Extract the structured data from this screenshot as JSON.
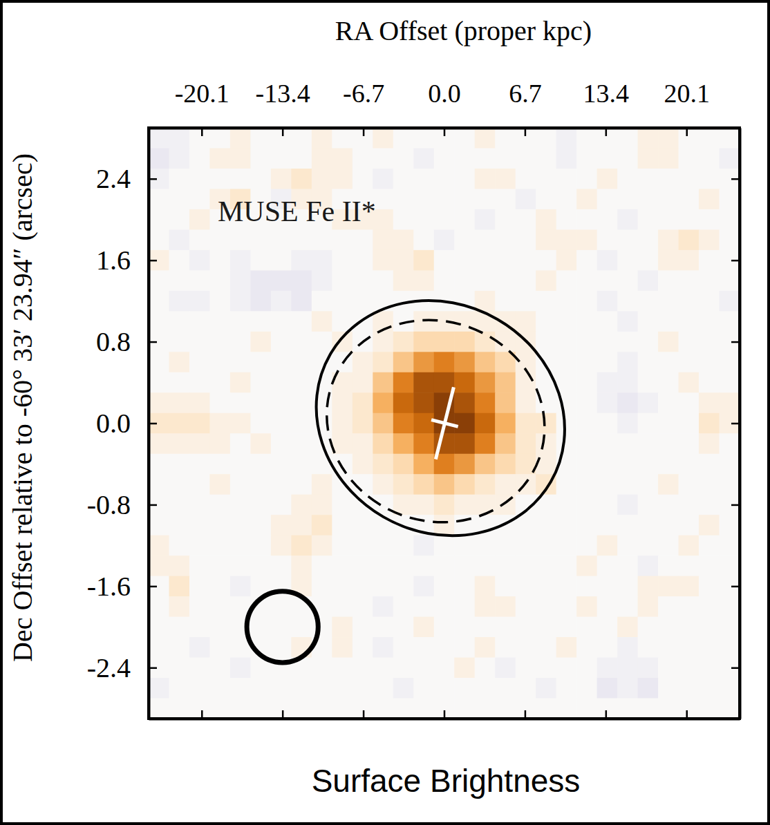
{
  "chart_data": {
    "type": "heatmap",
    "title": "MUSE Fe II*",
    "xlabel": "RA Offset (proper kpc)",
    "ylabel": "Dec Offset relative to -60° 33′ 23.94″ (arcsec)",
    "colorbar_label": "Surface Brightness",
    "xlim": [
      -24.5,
      24.5
    ],
    "ylim": [
      -2.9,
      2.9
    ],
    "xticks": [
      -20.1,
      -13.4,
      -6.7,
      {
        "value": 0,
        "label": "0.0"
      },
      6.7,
      13.4,
      20.1
    ],
    "yticks": [
      -2.4,
      -1.6,
      -0.8,
      {
        "value": 0,
        "label": "0.0"
      },
      0.8,
      1.6,
      2.4
    ],
    "tick_labels": true,
    "color_range": [
      -10,
      10
    ],
    "z": [
      [
        -1,
        -1,
        0,
        0,
        1,
        0,
        0,
        0,
        1,
        0,
        0,
        1,
        0,
        0,
        0,
        0,
        1,
        0,
        0,
        0,
        -1,
        0,
        0,
        0,
        1,
        1,
        0,
        0,
        0
      ],
      [
        -2,
        -1,
        0,
        1,
        1,
        0,
        0,
        0,
        1,
        1,
        0,
        0,
        0,
        -1,
        0,
        0,
        0,
        0,
        0,
        0,
        -1,
        0,
        0,
        0,
        1,
        1,
        0,
        0,
        -1
      ],
      [
        -1,
        0,
        0,
        0,
        0,
        0,
        1,
        2,
        1,
        1,
        0,
        -1,
        0,
        0,
        0,
        0,
        1,
        1,
        0,
        0,
        0,
        0,
        1,
        0,
        0,
        0,
        0,
        0,
        0
      ],
      [
        0,
        0,
        0,
        1,
        2,
        0,
        -1,
        1,
        1,
        0,
        0,
        0,
        0,
        0,
        0,
        0,
        0,
        0,
        -1,
        0,
        0,
        1,
        0,
        0,
        0,
        0,
        0,
        1,
        0
      ],
      [
        0,
        0,
        1,
        0,
        0,
        0,
        0,
        0,
        0,
        1,
        1,
        1,
        0,
        0,
        0,
        0,
        -1,
        0,
        0,
        1,
        0,
        0,
        0,
        -1,
        0,
        0,
        0,
        0,
        0
      ],
      [
        0,
        -1,
        0,
        0,
        0,
        0,
        0,
        0,
        0,
        0,
        0,
        1,
        1,
        0,
        -1,
        0,
        0,
        0,
        0,
        1,
        1,
        1,
        0,
        0,
        0,
        1,
        2,
        1,
        0
      ],
      [
        1,
        0,
        -1,
        0,
        -1,
        0,
        0,
        -1,
        -1,
        0,
        0,
        1,
        1,
        2,
        0,
        0,
        0,
        0,
        0,
        0,
        1,
        0,
        -1,
        0,
        0,
        1,
        1,
        0,
        0
      ],
      [
        0,
        0,
        0,
        0,
        -1,
        -2,
        -2,
        -2,
        -1,
        0,
        0,
        0,
        1,
        1,
        0,
        0,
        0,
        0,
        0,
        1,
        0,
        0,
        0,
        0,
        -1,
        0,
        0,
        0,
        0
      ],
      [
        0,
        -1,
        -1,
        0,
        -1,
        -2,
        -1,
        -2,
        0,
        0,
        0,
        0,
        0,
        0,
        0,
        0,
        1,
        0,
        0,
        0,
        0,
        0,
        -1,
        0,
        0,
        0,
        0,
        0,
        -1
      ],
      [
        0,
        0,
        0,
        0,
        0,
        0,
        0,
        0,
        1,
        0,
        0,
        1,
        0,
        1,
        1,
        1,
        1,
        1,
        1,
        0,
        0,
        0,
        0,
        -1,
        0,
        0,
        0,
        0,
        0
      ],
      [
        0,
        0,
        0,
        0,
        0,
        1,
        0,
        0,
        0,
        1,
        0,
        1,
        2,
        3,
        3,
        3,
        2,
        1,
        1,
        0,
        0,
        0,
        0,
        0,
        0,
        1,
        0,
        0,
        0
      ],
      [
        0,
        1,
        0,
        0,
        0,
        0,
        0,
        0,
        0,
        0,
        1,
        2,
        4,
        6,
        7,
        6,
        4,
        3,
        1,
        0,
        0,
        0,
        0,
        -1,
        0,
        0,
        0,
        0,
        0
      ],
      [
        0,
        0,
        0,
        0,
        1,
        0,
        0,
        0,
        0,
        1,
        1,
        4,
        7,
        9,
        9,
        8,
        6,
        4,
        1,
        0,
        0,
        0,
        -1,
        -1,
        0,
        0,
        1,
        0,
        0
      ],
      [
        1,
        1,
        1,
        0,
        0,
        0,
        0,
        0,
        0,
        1,
        2,
        5,
        8,
        9,
        10,
        9,
        7,
        4,
        1,
        0,
        0,
        0,
        -1,
        -2,
        -1,
        0,
        0,
        1,
        1
      ],
      [
        2,
        2,
        2,
        1,
        1,
        0,
        0,
        0,
        0,
        1,
        2,
        4,
        7,
        8,
        10,
        10,
        8,
        5,
        2,
        2,
        0,
        0,
        0,
        -1,
        0,
        0,
        0,
        2,
        1
      ],
      [
        1,
        1,
        1,
        1,
        0,
        1,
        0,
        0,
        0,
        1,
        1,
        3,
        5,
        7,
        9,
        9,
        7,
        4,
        2,
        1,
        0,
        0,
        0,
        0,
        0,
        0,
        0,
        1,
        0
      ],
      [
        0,
        0,
        0,
        0,
        0,
        0,
        0,
        0,
        0,
        0,
        1,
        2,
        3,
        5,
        7,
        6,
        4,
        3,
        2,
        1,
        0,
        0,
        0,
        0,
        0,
        0,
        0,
        0,
        0
      ],
      [
        0,
        0,
        0,
        1,
        0,
        0,
        0,
        0,
        1,
        0,
        0,
        1,
        2,
        3,
        4,
        3,
        2,
        1,
        1,
        2,
        0,
        0,
        0,
        0,
        0,
        1,
        0,
        0,
        0
      ],
      [
        0,
        0,
        0,
        0,
        0,
        0,
        0,
        1,
        1,
        0,
        0,
        0,
        1,
        1,
        2,
        1,
        1,
        1,
        0,
        0,
        0,
        0,
        0,
        -1,
        0,
        0,
        0,
        0,
        0
      ],
      [
        0,
        0,
        0,
        0,
        0,
        0,
        1,
        1,
        2,
        0,
        0,
        0,
        0,
        0,
        1,
        0,
        0,
        0,
        0,
        0,
        0,
        0,
        0,
        0,
        0,
        0,
        0,
        1,
        0
      ],
      [
        1,
        0,
        0,
        0,
        0,
        0,
        1,
        2,
        1,
        0,
        0,
        0,
        0,
        -1,
        0,
        0,
        0,
        0,
        0,
        0,
        0,
        0,
        1,
        0,
        0,
        0,
        1,
        0,
        0
      ],
      [
        1,
        1,
        0,
        0,
        0,
        0,
        0,
        1,
        0,
        0,
        0,
        0,
        0,
        0,
        0,
        0,
        0,
        0,
        0,
        0,
        0,
        1,
        0,
        0,
        -1,
        0,
        0,
        0,
        0
      ],
      [
        0,
        2,
        0,
        0,
        -1,
        0,
        0,
        1,
        0,
        0,
        0,
        0,
        0,
        -1,
        0,
        0,
        1,
        0,
        0,
        0,
        0,
        0,
        0,
        0,
        1,
        1,
        1,
        0,
        0
      ],
      [
        0,
        1,
        0,
        0,
        0,
        0,
        0,
        0,
        0,
        0,
        0,
        -1,
        0,
        0,
        0,
        0,
        1,
        1,
        0,
        0,
        0,
        1,
        0,
        0,
        1,
        0,
        0,
        0,
        0
      ],
      [
        0,
        0,
        0,
        0,
        0,
        0,
        0,
        0,
        0,
        1,
        0,
        0,
        0,
        1,
        0,
        0,
        0,
        0,
        0,
        0,
        0,
        0,
        0,
        1,
        0,
        0,
        0,
        0,
        0
      ],
      [
        0,
        0,
        -1,
        0,
        0,
        0,
        0,
        1,
        0,
        1,
        0,
        -1,
        0,
        0,
        0,
        0,
        1,
        0,
        0,
        0,
        1,
        0,
        0,
        -1,
        0,
        0,
        0,
        0,
        0
      ],
      [
        0,
        0,
        0,
        0,
        -1,
        0,
        0,
        0,
        0,
        0,
        0,
        0,
        0,
        0,
        0,
        1,
        0,
        -1,
        0,
        0,
        0,
        0,
        -1,
        -1,
        -1,
        0,
        0,
        0,
        0
      ],
      [
        -1,
        0,
        0,
        0,
        0,
        0,
        0,
        0,
        0,
        0,
        0,
        0,
        -1,
        0,
        0,
        0,
        0,
        0,
        0,
        -1,
        0,
        0,
        -2,
        -1,
        -2,
        0,
        0,
        0,
        0
      ],
      [
        0,
        0,
        0,
        0,
        0,
        0,
        0,
        0,
        0,
        0,
        0,
        0,
        0,
        0,
        0,
        0,
        0,
        0,
        0,
        0,
        0,
        0,
        0,
        0,
        0,
        0,
        0,
        0,
        0
      ]
    ],
    "ellipses": [
      {
        "x": -0.3,
        "y": 0.05,
        "a": 1.25,
        "b": 1.12,
        "position_angle": 30,
        "line_style": "solid"
      },
      {
        "x": -0.7,
        "y": 0.02,
        "a": 1.08,
        "b": 0.98,
        "position_angle": 20,
        "line_style": "dashed"
      }
    ],
    "cross": {
      "x": 0.05,
      "y": 0.0,
      "length": 0.73,
      "width": 0.27,
      "position_angle": 14,
      "color": "#ffffff"
    },
    "beam": {
      "x": -13.4,
      "y": -2.0,
      "radius": 0.35
    }
  }
}
